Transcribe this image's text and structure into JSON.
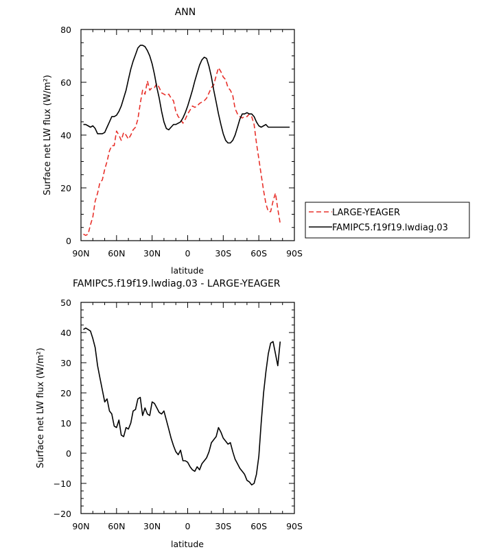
{
  "chart_data": [
    {
      "type": "line",
      "title": "ANN",
      "xlabel": "latitude",
      "ylabel": "Surface net LW flux (W/m²)",
      "xlim": [
        90,
        -90
      ],
      "ylim": [
        0,
        80
      ],
      "xticks": [
        90,
        60,
        30,
        0,
        -30,
        -60,
        -90
      ],
      "xtick_labels": [
        "90N",
        "60N",
        "30N",
        "0",
        "30S",
        "60S",
        "90S"
      ],
      "yticks": [
        0,
        20,
        40,
        60,
        80
      ],
      "ytick_labels": [
        "0",
        "20",
        "40",
        "60",
        "80"
      ],
      "grid": false,
      "legend_position": "right, outside plot",
      "series": [
        {
          "name": "LARGE-YEAGER",
          "color": "#e8302a",
          "dash": "dashed",
          "x": [
            88,
            86,
            84,
            82,
            80,
            78,
            76,
            74,
            72,
            70,
            68,
            66,
            64,
            62,
            60,
            58,
            56,
            54,
            52,
            50,
            48,
            46,
            44,
            42,
            40,
            38,
            36,
            34,
            32,
            30,
            28,
            26,
            24,
            22,
            20,
            18,
            16,
            14,
            12,
            10,
            8,
            6,
            4,
            2,
            0,
            -2,
            -4,
            -6,
            -8,
            -10,
            -12,
            -14,
            -16,
            -18,
            -20,
            -22,
            -24,
            -26,
            -28,
            -30,
            -32,
            -34,
            -36,
            -38,
            -40,
            -42,
            -44,
            -46,
            -48,
            -50,
            -52,
            -54,
            -56,
            -58,
            -60,
            -62,
            -64,
            -66,
            -68,
            -70,
            -72,
            -74,
            -76,
            -78
          ],
          "y": [
            2.5,
            2,
            2.5,
            6,
            9,
            15,
            18,
            22,
            23,
            27,
            30,
            34,
            36,
            36,
            41.5,
            40,
            38,
            41,
            40,
            38.5,
            40,
            42,
            43,
            46,
            52,
            57,
            55.5,
            60.5,
            57,
            58,
            58,
            59.5,
            58,
            56,
            55.5,
            55,
            55.5,
            54,
            53,
            49,
            47,
            46,
            44.5,
            46,
            48,
            49.5,
            51,
            50.5,
            51,
            52,
            52.5,
            53,
            54,
            56,
            58,
            59,
            62.5,
            65.5,
            64,
            62,
            61,
            58,
            57,
            55,
            50,
            48,
            47,
            46.5,
            47,
            47,
            48,
            47,
            44,
            37,
            31,
            25,
            19,
            14,
            11,
            11,
            15,
            18,
            12,
            6.5
          ]
        },
        {
          "name": "FAMIPC5.f19f19.lwdiag.03",
          "color": "#000000",
          "dash": "solid",
          "x": [
            88,
            86,
            84,
            82,
            80,
            78,
            76,
            74,
            72,
            70,
            68,
            66,
            64,
            62,
            60,
            58,
            56,
            54,
            52,
            50,
            48,
            46,
            44,
            42,
            40,
            38,
            36,
            34,
            32,
            30,
            28,
            26,
            24,
            22,
            20,
            18,
            16,
            14,
            12,
            10,
            8,
            6,
            4,
            2,
            0,
            -2,
            -4,
            -6,
            -8,
            -10,
            -12,
            -14,
            -16,
            -18,
            -20,
            -22,
            -24,
            -26,
            -28,
            -30,
            -32,
            -34,
            -36,
            -38,
            -40,
            -42,
            -44,
            -46,
            -48,
            -50,
            -52,
            -54,
            -56,
            -58,
            -60,
            -62,
            -64,
            -66,
            -68,
            -70,
            -72,
            -74,
            -76,
            -78,
            -80,
            -82,
            -84,
            -86
          ],
          "y": [
            44,
            44,
            43.5,
            43,
            43.5,
            42.5,
            40.5,
            40.5,
            40.5,
            41,
            43,
            45,
            47,
            47,
            47.5,
            49,
            51,
            54,
            57,
            61,
            65,
            68,
            70.5,
            73,
            74,
            74,
            73.5,
            72,
            70,
            67,
            63,
            58,
            54,
            49,
            45,
            42.5,
            42,
            43,
            44,
            44,
            44.5,
            45,
            46.5,
            48.5,
            51,
            54,
            57,
            60.5,
            63.5,
            66.5,
            68.5,
            69.5,
            69,
            66,
            62,
            57,
            52.5,
            48,
            44,
            40.5,
            38,
            37,
            37,
            38,
            40,
            43,
            46,
            48,
            48,
            48.5,
            48,
            48,
            47,
            45,
            43.5,
            43,
            43.5,
            44,
            43,
            43,
            43,
            43,
            43,
            43,
            43,
            43,
            43,
            43
          ]
        }
      ]
    },
    {
      "type": "line",
      "title": "FAMIPC5.f19f19.lwdiag.03 - LARGE-YEAGER",
      "xlabel": "latitude",
      "ylabel": "Surface net LW flux (W/m²)",
      "xlim": [
        90,
        -90
      ],
      "ylim": [
        -20,
        50
      ],
      "xticks": [
        90,
        60,
        30,
        0,
        -30,
        -60,
        -90
      ],
      "xtick_labels": [
        "90N",
        "60N",
        "30N",
        "0",
        "30S",
        "60S",
        "90S"
      ],
      "yticks": [
        -20,
        -10,
        0,
        10,
        20,
        30,
        40,
        50
      ],
      "ytick_labels": [
        "−20",
        "−10",
        "0",
        "10",
        "20",
        "30",
        "40",
        "50"
      ],
      "grid": false,
      "series": [
        {
          "color": "#000000",
          "dash": "solid",
          "x": [
            88,
            86,
            84,
            82,
            80,
            78,
            76,
            74,
            72,
            70,
            68,
            66,
            64,
            62,
            60,
            58,
            56,
            54,
            52,
            50,
            48,
            46,
            44,
            42,
            40,
            38,
            36,
            34,
            32,
            30,
            28,
            26,
            24,
            22,
            20,
            18,
            16,
            14,
            12,
            10,
            8,
            6,
            4,
            2,
            0,
            -2,
            -4,
            -6,
            -8,
            -10,
            -12,
            -14,
            -16,
            -18,
            -20,
            -22,
            -24,
            -26,
            -28,
            -30,
            -32,
            -34,
            -36,
            -38,
            -40,
            -42,
            -44,
            -46,
            -48,
            -50,
            -52,
            -54,
            -56,
            -58,
            -60,
            -62,
            -64,
            -66,
            -68,
            -70,
            -72,
            -74,
            -76,
            -78
          ],
          "y": [
            41,
            41.5,
            41,
            40.5,
            38,
            35,
            29,
            25,
            21,
            17,
            18,
            14,
            13,
            9,
            8.5,
            11,
            6,
            5.5,
            8.5,
            8,
            10,
            14,
            14.5,
            18,
            18.5,
            12.5,
            15,
            13,
            12.5,
            17,
            16.5,
            15,
            13.5,
            13,
            14,
            11,
            8,
            5,
            2.5,
            0.5,
            -0.5,
            1,
            -2.5,
            -2.5,
            -3,
            -4.5,
            -5.5,
            -6,
            -4.5,
            -5.5,
            -3.5,
            -2.5,
            -1.5,
            0.5,
            3.5,
            4.5,
            5.5,
            8.5,
            7,
            5,
            4,
            3,
            3.5,
            0.5,
            -2,
            -3.5,
            -5,
            -6,
            -7,
            -9,
            -9.5,
            -10.5,
            -10,
            -7,
            -1,
            10,
            20,
            27,
            33,
            36.5,
            37,
            33,
            29,
            37
          ]
        }
      ]
    }
  ]
}
